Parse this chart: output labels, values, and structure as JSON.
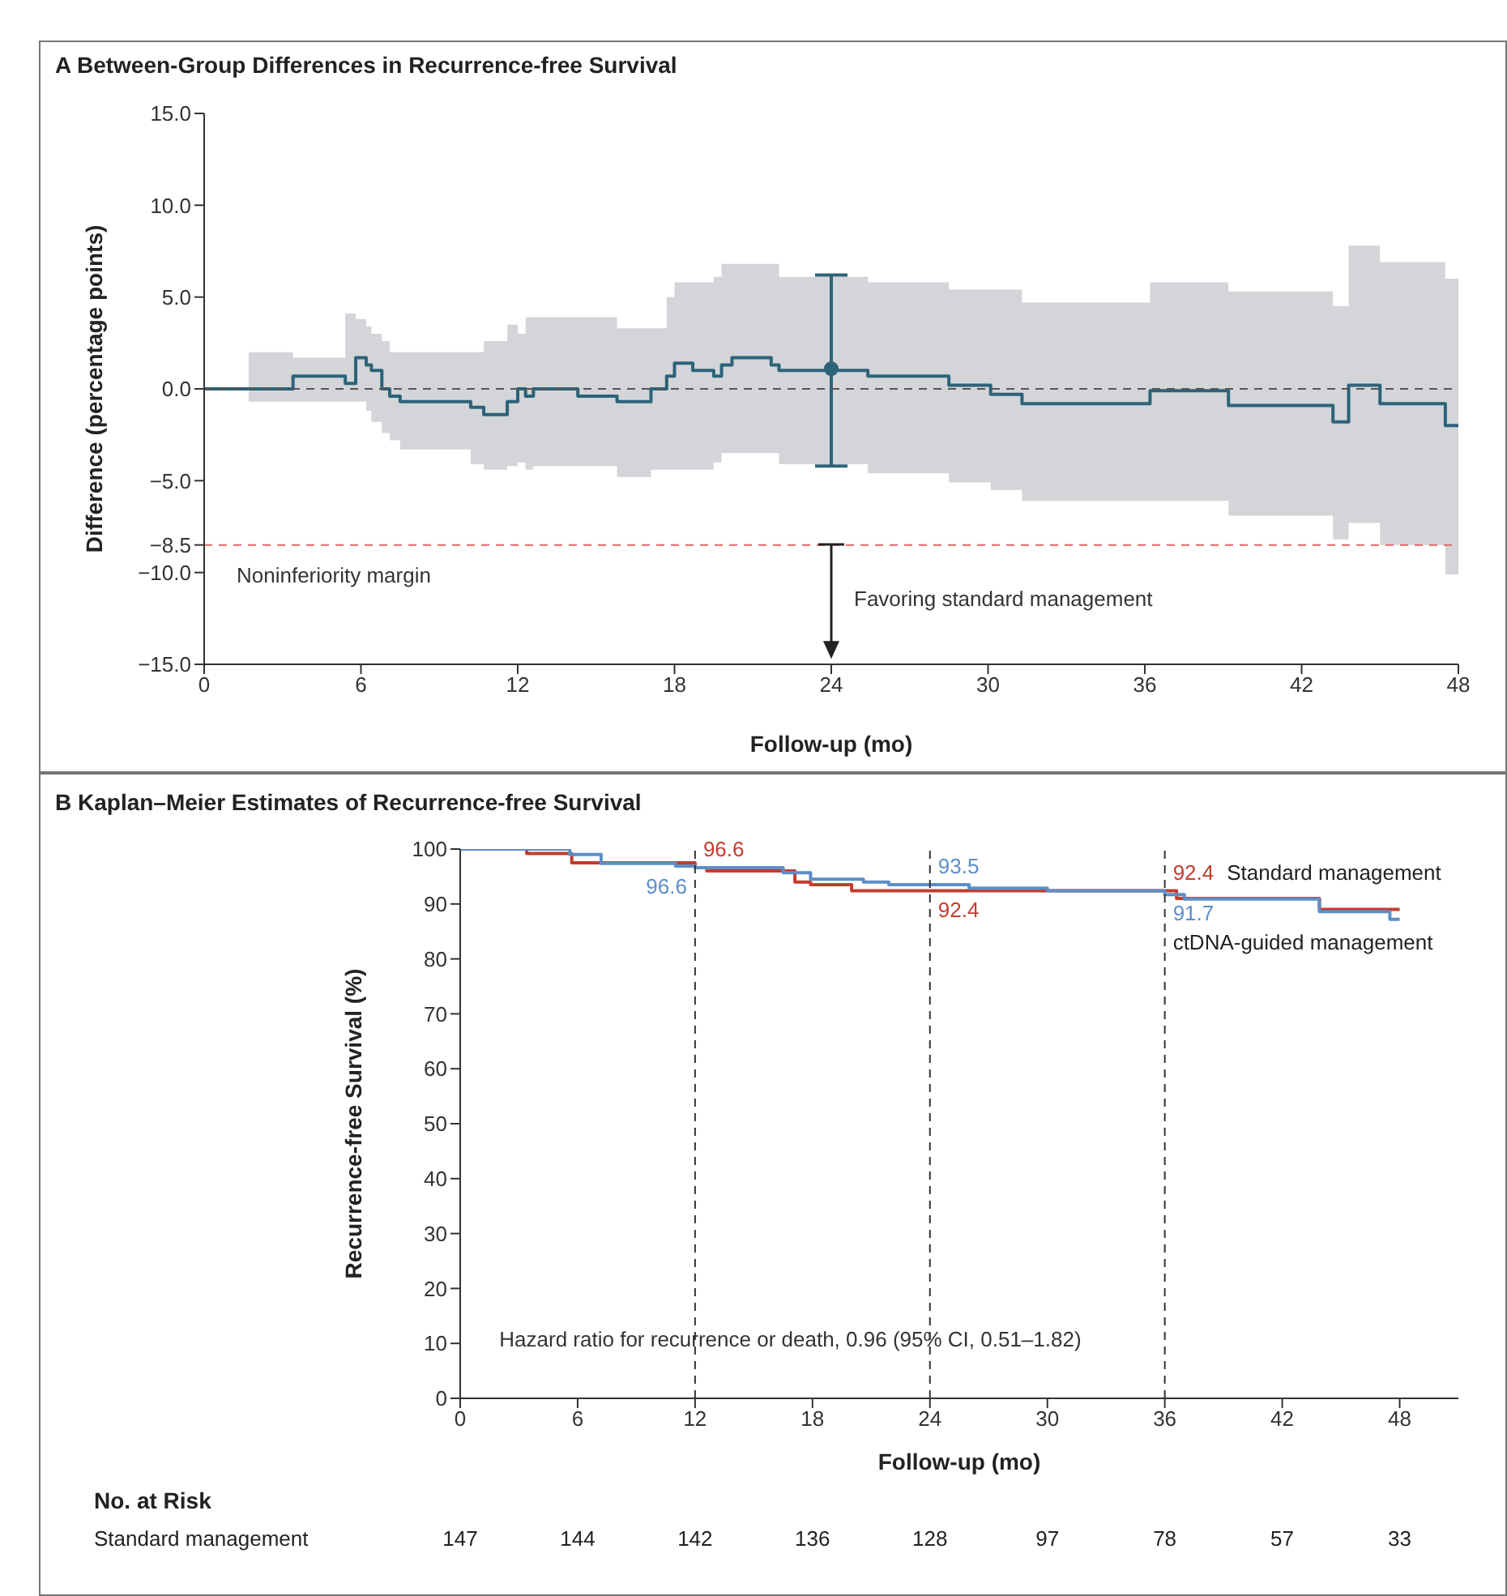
{
  "chart_data": [
    {
      "type": "step",
      "title": "A Between-Group Differences in Recurrence-free Survival",
      "xlabel": "Follow-up (mo)",
      "ylabel": "Difference (percentage points)",
      "xlim": [
        0,
        48
      ],
      "xticks": [
        0,
        6,
        12,
        18,
        24,
        30,
        36,
        42,
        48
      ],
      "ylim": [
        -15,
        15
      ],
      "yticks": [
        {
          "value": 15,
          "label": "15.0"
        },
        {
          "value": 10,
          "label": "10.0"
        },
        {
          "value": 5,
          "label": "5.0"
        },
        {
          "value": 0,
          "label": "0.0"
        },
        {
          "value": -5,
          "label": "−5.0"
        },
        {
          "value": -8.5,
          "label": "−8.5"
        },
        {
          "value": -10,
          "label": "−10.0"
        },
        {
          "value": -15,
          "label": "−15.0"
        }
      ],
      "series": [
        {
          "color": "#2c6378",
          "x": [
            0,
            1.7,
            3.4,
            5.4,
            5.8,
            6.2,
            6.4,
            6.8,
            7.1,
            7.5,
            10.2,
            10.7,
            11.6,
            12.0,
            12.3,
            12.6,
            14.3,
            15.8,
            17.1,
            17.7,
            18.0,
            18.7,
            19.5,
            19.8,
            20.2,
            21.7,
            22.0,
            24,
            25.4,
            28.5,
            30.1,
            31.3,
            36.2,
            39.2,
            43.2,
            43.8,
            45.0,
            47.5,
            48
          ],
          "values": [
            0,
            0,
            0.7,
            0.3,
            1.7,
            1.3,
            1.0,
            0,
            -0.4,
            -0.7,
            -1.0,
            -1.4,
            -0.7,
            0,
            -0.4,
            0,
            -0.4,
            -0.7,
            0,
            0.7,
            1.4,
            1.0,
            0.7,
            1.3,
            1.7,
            1.3,
            1.0,
            1.0,
            0.7,
            0.2,
            -0.3,
            -0.8,
            -0.1,
            -0.9,
            -1.8,
            0.2,
            -0.8,
            -2.0,
            -2.0
          ],
          "upper": [
            0,
            2.0,
            1.7,
            4.1,
            3.8,
            3.4,
            3.0,
            2.6,
            2.0,
            2.0,
            2.0,
            2.6,
            3.5,
            3.0,
            3.9,
            3.9,
            3.9,
            3.3,
            3.3,
            5.0,
            5.8,
            5.8,
            6.1,
            6.8,
            6.8,
            6.8,
            6.1,
            6.1,
            5.8,
            5.4,
            5.4,
            4.7,
            5.8,
            5.3,
            4.5,
            7.8,
            6.9,
            6.0,
            6.0
          ],
          "lower": [
            0,
            -0.7,
            -0.7,
            -0.7,
            -0.7,
            -1.2,
            -1.8,
            -2.4,
            -2.8,
            -3.3,
            -4.1,
            -4.4,
            -4.2,
            -4.0,
            -4.4,
            -4.2,
            -4.2,
            -4.8,
            -4.4,
            -4.4,
            -4.4,
            -4.4,
            -4.0,
            -3.5,
            -3.5,
            -3.5,
            -4.1,
            -4.1,
            -4.6,
            -5.1,
            -5.5,
            -6.1,
            -6.1,
            -6.9,
            -8.2,
            -7.3,
            -8.5,
            -10.1,
            -10.1
          ]
        },
        {
          "type": "scatter",
          "color": "#2c6378",
          "marker": "circle",
          "x": [
            24
          ],
          "values": [
            1.1
          ],
          "errors": [
            [
              -4.2,
              6.2
            ]
          ]
        }
      ],
      "ref_lines": [
        {
          "axis": "y",
          "value": 0,
          "color": "#555555",
          "line_style": "dashed"
        },
        {
          "axis": "y",
          "value": -8.5,
          "label": "Noninferiority margin",
          "color": "#e06666",
          "line_style": "dashed"
        }
      ],
      "annotations": [
        "Favoring standard management"
      ]
    },
    {
      "type": "step",
      "title": "B Kaplan–Meier Estimates of Recurrence-free Survival",
      "xlabel": "Follow-up (mo)",
      "ylabel": "Recurrence-free Survival (%)",
      "xlim": [
        0,
        51
      ],
      "xticks": [
        0,
        6,
        12,
        18,
        24,
        30,
        36,
        42,
        48
      ],
      "ylim": [
        0,
        100
      ],
      "yticks": [
        0,
        10,
        20,
        30,
        40,
        50,
        60,
        70,
        80,
        90,
        100
      ],
      "series": [
        {
          "name": "Standard management",
          "color": "#c43c2e",
          "x": [
            0,
            3.4,
            5.7,
            12,
            12.6,
            17.1,
            17.9,
            20,
            24,
            36,
            36.6,
            43.9,
            48
          ],
          "values": [
            100,
            99.2,
            97.5,
            96.6,
            96.0,
            94.0,
            93.5,
            92.4,
            92.4,
            92.4,
            91.0,
            89.0,
            89.0
          ],
          "value_labels": [
            null,
            null,
            null,
            "96.6",
            null,
            null,
            null,
            null,
            "92.4",
            "92.4",
            null,
            null,
            null
          ]
        },
        {
          "name": "ctDNA-guided management",
          "color": "#5d8fc7",
          "x": [
            0,
            5.6,
            7.2,
            11,
            12,
            16.5,
            17.9,
            20.6,
            21.9,
            24,
            26,
            30,
            36,
            37,
            43.9,
            47.5,
            48
          ],
          "values": [
            100,
            99.0,
            97.4,
            96.9,
            96.6,
            95.7,
            94.5,
            94.0,
            93.5,
            93.5,
            92.9,
            92.4,
            91.7,
            90.9,
            88.6,
            87.2,
            87.2
          ],
          "value_labels": [
            null,
            null,
            null,
            null,
            "96.6",
            null,
            null,
            null,
            null,
            "93.5",
            null,
            null,
            "91.7",
            null,
            null,
            null,
            null
          ]
        }
      ],
      "ref_lines": [
        {
          "axis": "x",
          "value": 12,
          "color": "#333333",
          "line_style": "dashed"
        },
        {
          "axis": "x",
          "value": 24,
          "color": "#333333",
          "line_style": "dashed"
        },
        {
          "axis": "x",
          "value": 36,
          "color": "#333333",
          "line_style": "dashed"
        }
      ],
      "annotations": [
        "Hazard ratio for recurrence or death, 0.96 (95% CI, 0.51–1.82)",
        "No. at Risk",
        "Standard management",
        "147",
        "144",
        "142",
        "136",
        "128",
        "97",
        "78",
        "57",
        "33"
      ]
    }
  ]
}
